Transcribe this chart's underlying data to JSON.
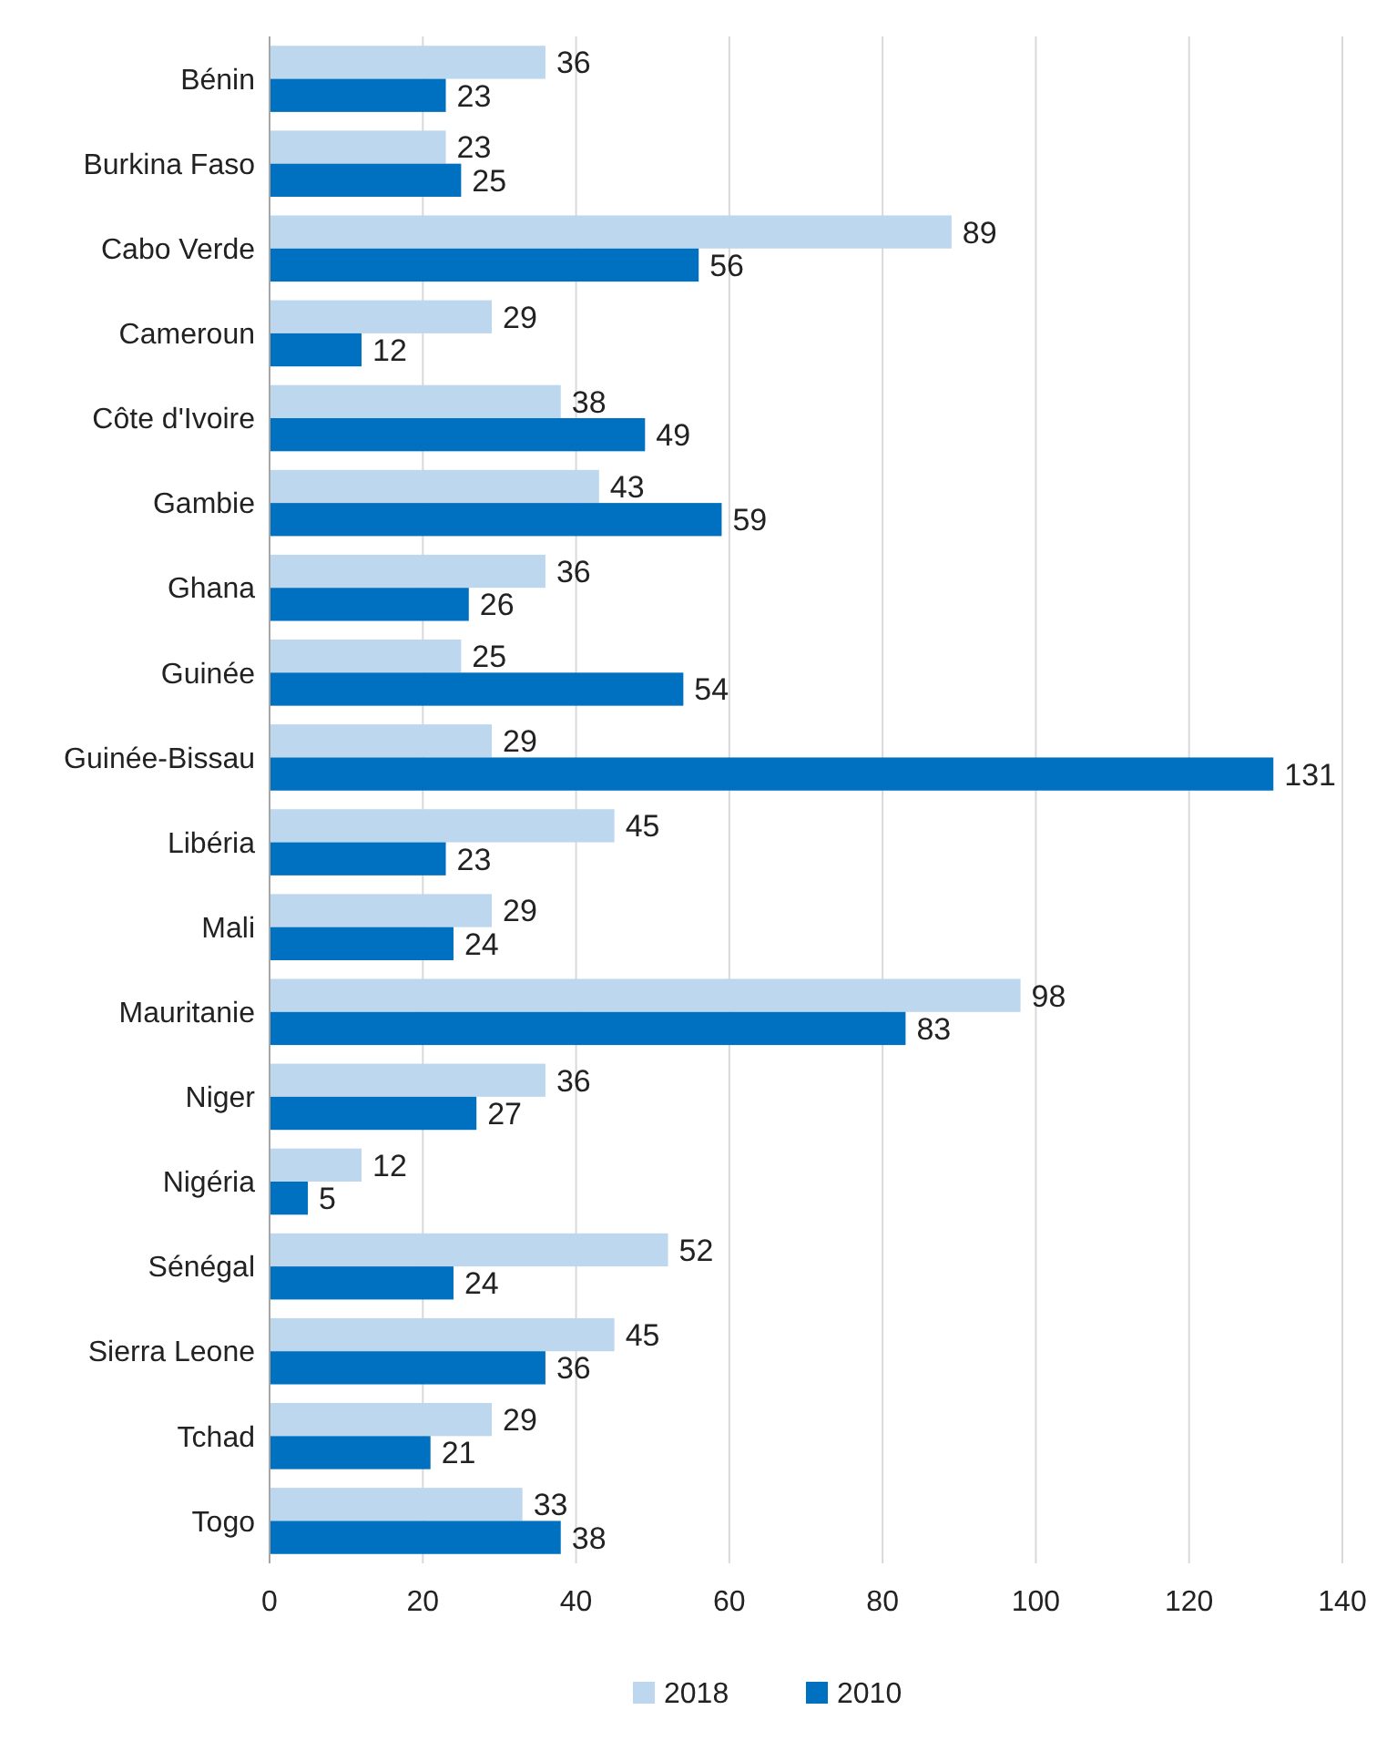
{
  "chart_data": {
    "type": "bar",
    "orientation": "horizontal",
    "categories": [
      "Bénin",
      "Burkina Faso",
      "Cabo Verde",
      "Cameroun",
      "Côte d'Ivoire",
      "Gambie",
      "Ghana",
      "Guinée",
      "Guinée-Bissau",
      "Libéria",
      "Mali",
      "Mauritanie",
      "Niger",
      "Nigéria",
      "Sénégal",
      "Sierra Leone",
      "Tchad",
      "Togo"
    ],
    "series": [
      {
        "name": "2018",
        "color": "#bdd7ee",
        "values": [
          36,
          23,
          89,
          29,
          38,
          43,
          36,
          25,
          29,
          45,
          29,
          98,
          36,
          12,
          52,
          45,
          29,
          33
        ]
      },
      {
        "name": "2010",
        "color": "#0070c0",
        "values": [
          23,
          25,
          56,
          12,
          49,
          59,
          26,
          54,
          131,
          23,
          24,
          83,
          27,
          5,
          24,
          36,
          21,
          38
        ]
      }
    ],
    "xlim": [
      0,
      140
    ],
    "xticks": [
      0,
      20,
      40,
      60,
      80,
      100,
      120,
      140
    ],
    "grid": "x",
    "data_labels": true,
    "legend": "bottom"
  }
}
